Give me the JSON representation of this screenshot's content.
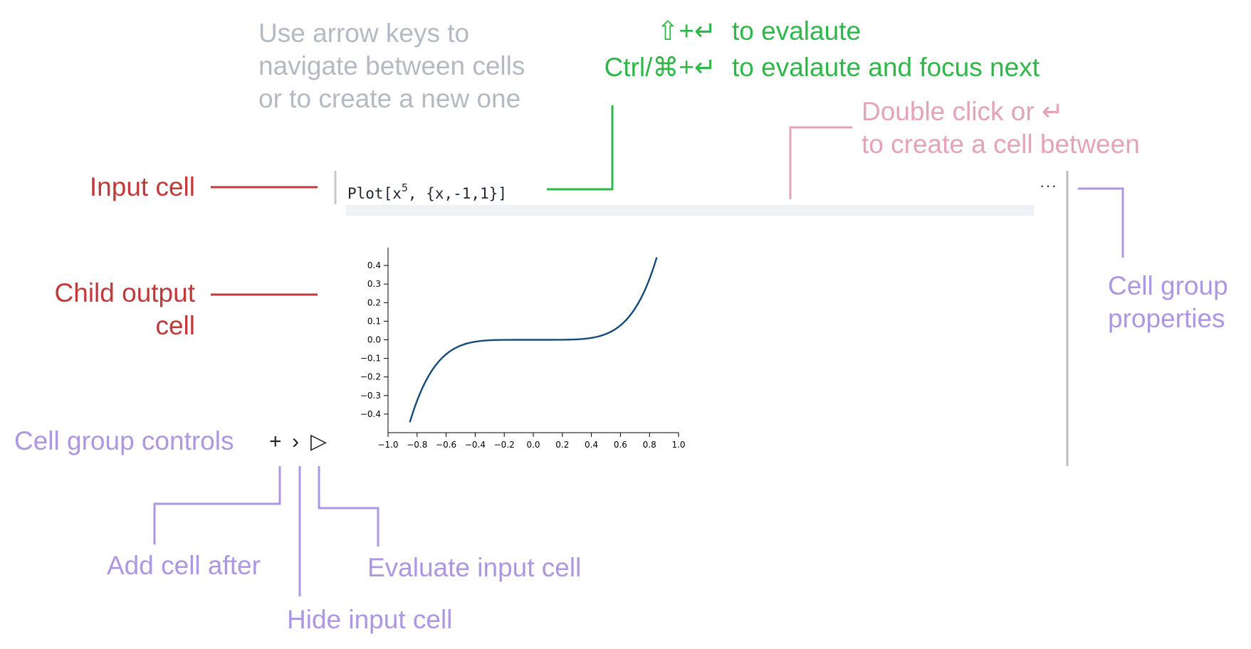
{
  "annotations": {
    "arrow_keys_lines": [
      "Use arrow keys to",
      "navigate between cells",
      "or to create a new one"
    ],
    "shift_enter_keys": "⇧+↵",
    "shift_enter_desc": "to evalaute",
    "ctrl_enter_keys": "Ctrl/⌘+↵",
    "ctrl_enter_desc": "to evalaute and focus next",
    "double_click_line1": "Double click or ↵",
    "double_click_line2": "to create a cell between",
    "input_cell": "Input cell",
    "child_output_line1": "Child output",
    "child_output_line2": "cell",
    "cell_group_props_line1": "Cell group",
    "cell_group_props_line2": "properties",
    "cell_group_controls": "Cell group controls",
    "add_cell_after": "Add cell after",
    "hide_input_cell": "Hide input cell",
    "evaluate_input_cell": "Evaluate input cell"
  },
  "input_cell": {
    "code_prefix": "Plot[x",
    "code_superscript": "5",
    "code_suffix": ", {x,-1,1}]",
    "menu_label": "···"
  },
  "controls": {
    "add_symbol": "+",
    "hide_symbol": "›",
    "evaluate_symbol": "▷"
  },
  "colors": {
    "gray": "#b4bac3",
    "green": "#2fb84a",
    "red": "#c0393b",
    "pink": "#e6a3b6",
    "purple": "#ae97e2",
    "curve": "#134b7a"
  },
  "chart_data": {
    "type": "line",
    "function": "x^5",
    "x": [
      -0.85,
      -0.8,
      -0.7,
      -0.6,
      -0.5,
      -0.4,
      -0.3,
      -0.2,
      -0.1,
      0.0,
      0.1,
      0.2,
      0.3,
      0.4,
      0.5,
      0.6,
      0.7,
      0.8,
      0.85
    ],
    "y": [
      -0.4437,
      -0.3277,
      -0.1681,
      -0.0778,
      -0.0313,
      -0.0102,
      -0.0024,
      -0.0003,
      0.0,
      0.0,
      0.0,
      0.0003,
      0.0024,
      0.0102,
      0.0313,
      0.0778,
      0.1681,
      0.3277,
      0.4437
    ],
    "xlim": [
      -1.0,
      1.0
    ],
    "ylim": [
      -0.45,
      0.45
    ],
    "x_ticks": [
      "−1.0",
      "−0.8",
      "−0.6",
      "−0.4",
      "−0.2",
      "0.0",
      "0.2",
      "0.4",
      "0.6",
      "0.8",
      "1.0"
    ],
    "y_ticks": [
      "0.4",
      "0.3",
      "0.2",
      "0.1",
      "0.0",
      "−0.1",
      "−0.2",
      "−0.3",
      "−0.4"
    ],
    "title": "",
    "xlabel": "",
    "ylabel": ""
  }
}
